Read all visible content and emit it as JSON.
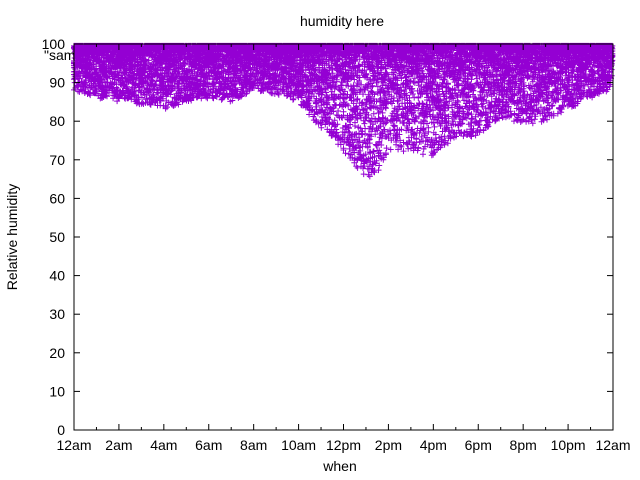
{
  "chart_data": {
    "type": "scatter",
    "title": "humidity here",
    "xlabel": "when",
    "ylabel": "Relative humidity",
    "legend_label": "\"sam",
    "legend_position": "top-left",
    "xlim": [
      0,
      24
    ],
    "ylim": [
      0,
      100
    ],
    "xticks": [
      {
        "value": 0,
        "label": "12am"
      },
      {
        "value": 2,
        "label": "2am"
      },
      {
        "value": 4,
        "label": "4am"
      },
      {
        "value": 6,
        "label": "6am"
      },
      {
        "value": 8,
        "label": "8am"
      },
      {
        "value": 10,
        "label": "10am"
      },
      {
        "value": 12,
        "label": "12pm"
      },
      {
        "value": 14,
        "label": "2pm"
      },
      {
        "value": 16,
        "label": "4pm"
      },
      {
        "value": 18,
        "label": "6pm"
      },
      {
        "value": 20,
        "label": "8pm"
      },
      {
        "value": 22,
        "label": "10pm"
      },
      {
        "value": 24,
        "label": "12am"
      }
    ],
    "yticks": [
      0,
      10,
      20,
      30,
      40,
      50,
      60,
      70,
      80,
      90,
      100
    ],
    "marker": "plus",
    "color": "#9400d3",
    "grid": false,
    "x_units": "hour of day",
    "lower_envelope": [
      {
        "x": 0.0,
        "y": 88
      },
      {
        "x": 1.0,
        "y": 86
      },
      {
        "x": 2.0,
        "y": 85
      },
      {
        "x": 3.5,
        "y": 84
      },
      {
        "x": 4.0,
        "y": 83
      },
      {
        "x": 5.0,
        "y": 85
      },
      {
        "x": 6.0,
        "y": 86
      },
      {
        "x": 7.0,
        "y": 85
      },
      {
        "x": 8.0,
        "y": 88
      },
      {
        "x": 9.0,
        "y": 87
      },
      {
        "x": 10.0,
        "y": 85
      },
      {
        "x": 11.0,
        "y": 78
      },
      {
        "x": 11.5,
        "y": 76
      },
      {
        "x": 12.0,
        "y": 72
      },
      {
        "x": 12.5,
        "y": 68
      },
      {
        "x": 13.0,
        "y": 65
      },
      {
        "x": 13.5,
        "y": 66
      },
      {
        "x": 14.0,
        "y": 72
      },
      {
        "x": 15.0,
        "y": 72
      },
      {
        "x": 16.0,
        "y": 71
      },
      {
        "x": 17.0,
        "y": 76
      },
      {
        "x": 18.0,
        "y": 76
      },
      {
        "x": 19.0,
        "y": 81
      },
      {
        "x": 20.0,
        "y": 79
      },
      {
        "x": 21.0,
        "y": 80
      },
      {
        "x": 22.0,
        "y": 83
      },
      {
        "x": 23.0,
        "y": 86
      },
      {
        "x": 24.0,
        "y": 88
      }
    ]
  }
}
